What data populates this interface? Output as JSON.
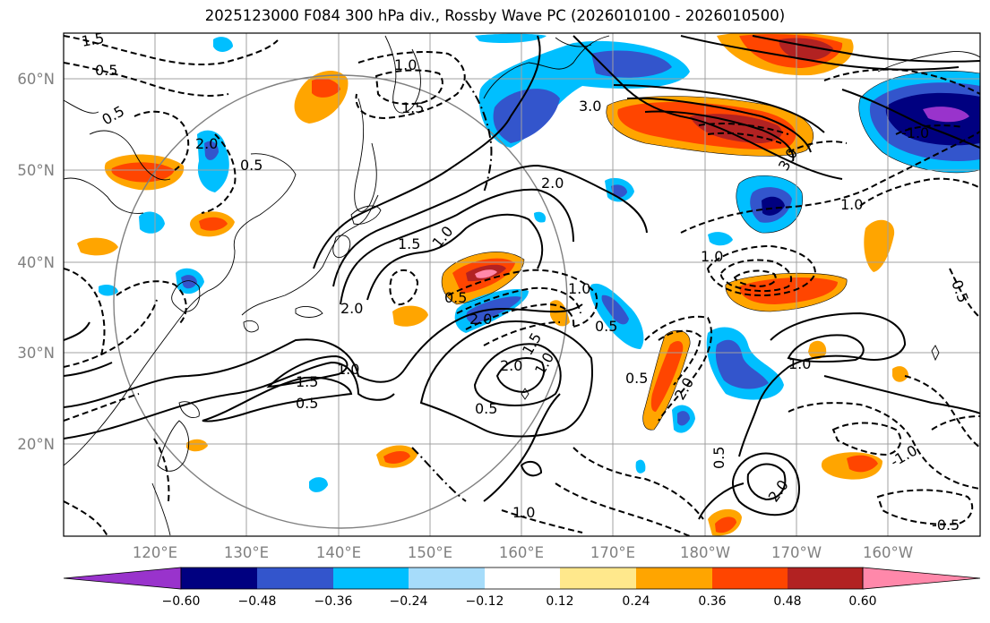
{
  "title": "2025123000 F084 300 hPa div., Rossby Wave PC (2026010100 - 2026010500)",
  "map": {
    "lat_labels": [
      "60°N",
      "50°N",
      "40°N",
      "30°N",
      "20°N"
    ],
    "lon_labels": [
      "120°E",
      "130°E",
      "140°E",
      "150°E",
      "160°E",
      "170°E",
      "180°W",
      "170°W",
      "160°W"
    ],
    "contour_labels": [
      "1.5",
      "0.5",
      "2.0",
      "0.5",
      "1.0",
      "1.5",
      "0.5",
      "3.0",
      "2.0",
      "1.5",
      "1.0",
      "0.5",
      "1.0",
      "2.0",
      "1.5",
      "1.0",
      "0.5",
      "2.0",
      "1.5",
      "0.5",
      "1.0",
      "0.5",
      "2.0",
      "1.0",
      "0.5",
      "2.0",
      "1.0",
      "3.0",
      "0.5",
      "1.0",
      "-0.5",
      "-1.0",
      "2.0",
      "1.0",
      "-1.0",
      "-0.5"
    ],
    "colors": {
      "neg_extreme": "#9933cc",
      "neg_060": "#000080",
      "neg_048": "#3355cc",
      "neg_036": "#00bfff",
      "neg_024": "#a6dcfa",
      "pos_012": "#ffe88c",
      "pos_024": "#ffa500",
      "pos_036": "#ff4500",
      "pos_048": "#b22222",
      "pos_extreme": "#ff88aa"
    }
  },
  "colorbar": {
    "ticks": [
      "−0.60",
      "−0.48",
      "−0.36",
      "−0.24",
      "−0.12",
      "0.12",
      "0.24",
      "0.36",
      "0.48",
      "0.60"
    ],
    "colors": [
      "#9933cc",
      "#000080",
      "#3355cc",
      "#00bfff",
      "#a6dcfa",
      "#ffffff",
      "#ffe88c",
      "#ffa500",
      "#ff4500",
      "#b22222",
      "#ff88aa"
    ]
  }
}
